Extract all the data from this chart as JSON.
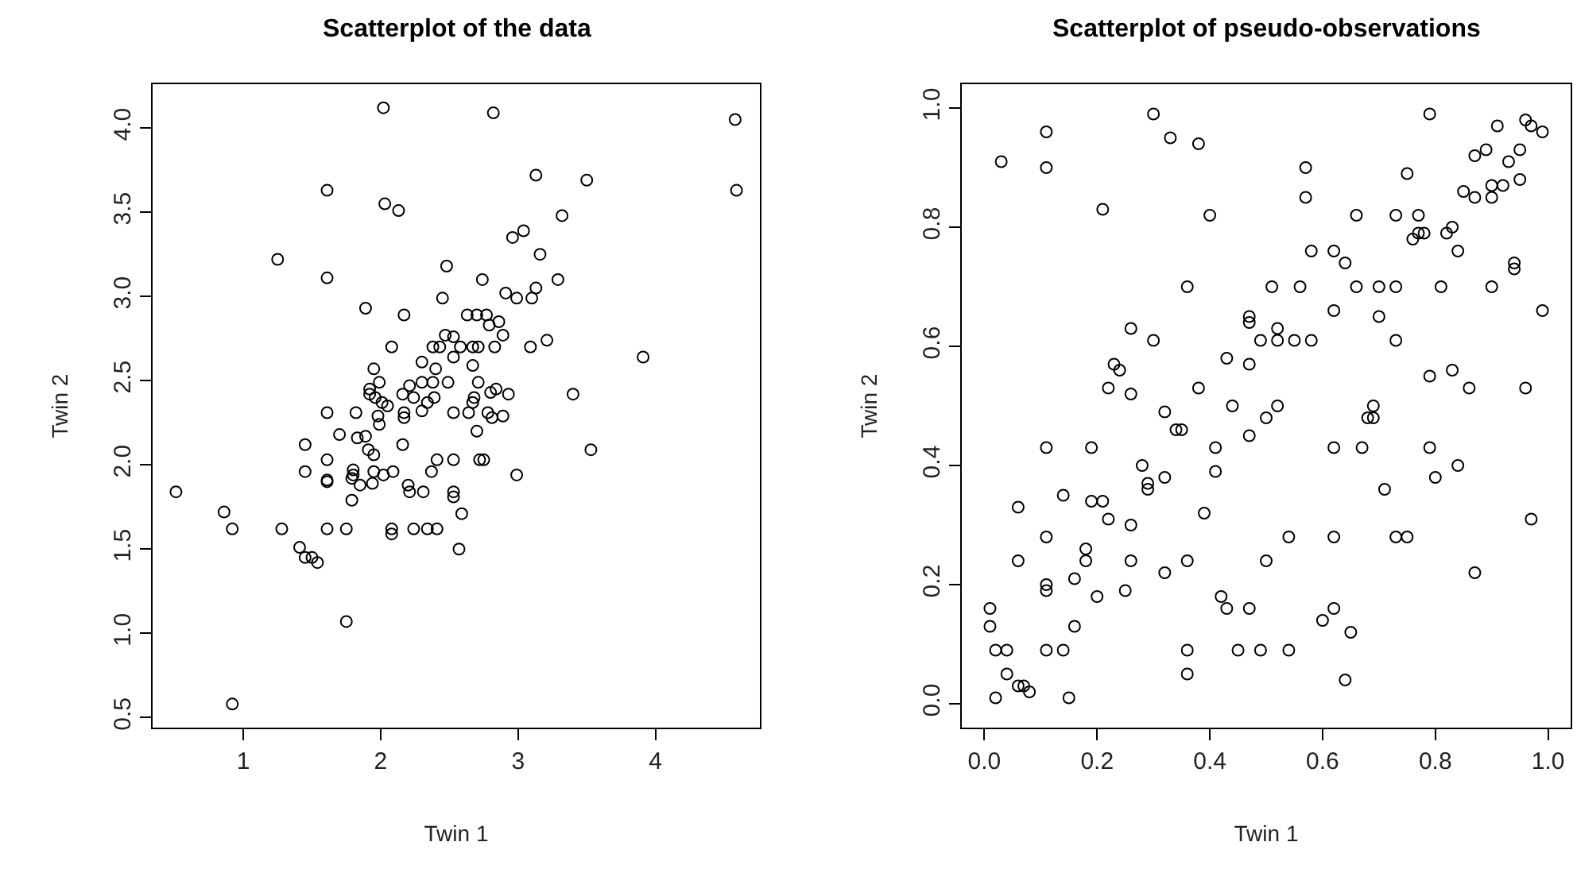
{
  "chart_data": [
    {
      "type": "scatter",
      "title": "Scatterplot of the data",
      "xlabel": "Twin 1",
      "ylabel": "Twin 2",
      "marker": "circle",
      "color": "#000000",
      "xlim": [
        0.34,
        4.76
      ],
      "ylim": [
        0.44,
        4.26
      ],
      "xticks": [
        1,
        2,
        3,
        4
      ],
      "yticks": [
        0.5,
        {
          "value": 1,
          "label": "1.0"
        },
        1.5,
        {
          "value": 2,
          "label": "2.0"
        },
        2.5,
        {
          "value": 3,
          "label": "3.0"
        },
        3.5,
        {
          "value": 4,
          "label": "4.0"
        }
      ],
      "x": [
        2.02,
        2.82,
        4.58,
        4.59,
        1.61,
        3.13,
        3.5,
        2.03,
        2.13,
        3.32,
        3.04,
        2.96,
        3.16,
        1.25,
        2.48,
        1.61,
        2.74,
        3.29,
        2.91,
        2.99,
        3.1,
        3.13,
        2.45,
        1.89,
        2.17,
        2.63,
        2.7,
        2.77,
        2.86,
        2.79,
        3.21,
        2.89,
        2.47,
        2.53,
        2.58,
        2.08,
        2.38,
        2.43,
        2.67,
        2.71,
        2.83,
        3.09,
        2.53,
        3.91,
        2.67,
        2.3,
        2.4,
        1.95,
        2.3,
        2.49,
        2.38,
        2.21,
        1.99,
        1.92,
        1.92,
        2.71,
        2.84,
        2.8,
        2.93,
        3.4,
        2.16,
        2.24,
        2.39,
        2.68,
        1.96,
        2.01,
        2.05,
        2.34,
        2.67,
        1.61,
        1.82,
        2.17,
        2.3,
        2.53,
        2.64,
        2.78,
        2.89,
        2.81,
        1.98,
        1.99,
        2.17,
        1.7,
        1.83,
        1.89,
        2.7,
        1.45,
        2.16,
        1.91,
        1.95,
        3.53,
        1.61,
        2.41,
        2.53,
        2.72,
        2.75,
        1.45,
        1.8,
        1.8,
        1.95,
        2.02,
        2.09,
        2.37,
        2.99,
        1.61,
        1.61,
        1.79,
        1.85,
        1.94,
        2.2,
        2.21,
        2.31,
        2.53,
        2.53,
        0.51,
        1.79,
        2.59,
        0.86,
        0.92,
        1.28,
        1.61,
        1.75,
        2.08,
        2.08,
        2.24,
        2.34,
        2.41,
        2.57,
        1.41,
        1.45,
        1.5,
        1.54,
        1.75,
        0.92
      ],
      "values": [
        4.12,
        4.09,
        4.05,
        3.63,
        3.63,
        3.72,
        3.69,
        3.55,
        3.51,
        3.48,
        3.39,
        3.35,
        3.25,
        3.22,
        3.18,
        3.11,
        3.1,
        3.1,
        3.02,
        2.99,
        2.99,
        3.05,
        2.99,
        2.93,
        2.89,
        2.89,
        2.89,
        2.89,
        2.85,
        2.83,
        2.74,
        2.77,
        2.77,
        2.76,
        2.7,
        2.7,
        2.7,
        2.7,
        2.7,
        2.7,
        2.7,
        2.7,
        2.64,
        2.64,
        2.59,
        2.61,
        2.57,
        2.57,
        2.49,
        2.49,
        2.49,
        2.47,
        2.49,
        2.45,
        2.42,
        2.49,
        2.45,
        2.43,
        2.42,
        2.42,
        2.42,
        2.4,
        2.4,
        2.4,
        2.4,
        2.37,
        2.35,
        2.37,
        2.37,
        2.31,
        2.31,
        2.31,
        2.32,
        2.31,
        2.31,
        2.31,
        2.29,
        2.28,
        2.29,
        2.24,
        2.28,
        2.18,
        2.16,
        2.17,
        2.2,
        2.12,
        2.12,
        2.09,
        2.06,
        2.09,
        2.03,
        2.03,
        2.03,
        2.03,
        2.03,
        1.96,
        1.97,
        1.94,
        1.96,
        1.94,
        1.96,
        1.96,
        1.94,
        1.91,
        1.9,
        1.92,
        1.88,
        1.89,
        1.88,
        1.84,
        1.84,
        1.84,
        1.81,
        1.84,
        1.79,
        1.71,
        1.72,
        1.62,
        1.62,
        1.62,
        1.62,
        1.62,
        1.59,
        1.62,
        1.62,
        1.62,
        1.5,
        1.51,
        1.45,
        1.45,
        1.42,
        1.07,
        0.58
      ]
    },
    {
      "type": "scatter",
      "title": "Scatterplot of pseudo-observations",
      "xlabel": "Twin 1",
      "ylabel": "Twin 2",
      "marker": "circle",
      "color": "#000000",
      "xlim": [
        -0.04,
        1.04
      ],
      "ylim": [
        -0.04,
        1.04
      ],
      "xticks": [
        {
          "value": 0,
          "label": "0.0"
        },
        0.2,
        0.4,
        0.6,
        0.8,
        {
          "value": 1,
          "label": "1.0"
        }
      ],
      "yticks": [
        {
          "value": 0,
          "label": "0.0"
        },
        0.2,
        0.4,
        0.6,
        0.8,
        {
          "value": 1,
          "label": "1.0"
        }
      ],
      "x": [
        0.03,
        0.11,
        0.11,
        0.21,
        0.3,
        0.33,
        0.38,
        0.4,
        0.57,
        0.57,
        0.79,
        0.91,
        0.96,
        0.97,
        0.99,
        0.95,
        0.93,
        0.87,
        0.89,
        0.92,
        0.95,
        0.9,
        0.87,
        0.9,
        0.85,
        0.75,
        0.66,
        0.73,
        0.77,
        0.76,
        0.77,
        0.78,
        0.82,
        0.83,
        0.84,
        0.94,
        0.94,
        0.58,
        0.62,
        0.64,
        0.36,
        0.51,
        0.56,
        0.66,
        0.7,
        0.73,
        0.81,
        0.9,
        0.99,
        0.62,
        0.7,
        0.47,
        0.47,
        0.26,
        0.52,
        0.3,
        0.49,
        0.52,
        0.55,
        0.58,
        0.73,
        0.43,
        0.47,
        0.23,
        0.24,
        0.83,
        0.79,
        0.22,
        0.38,
        0.86,
        0.96,
        0.26,
        0.52,
        0.69,
        0.32,
        0.44,
        0.68,
        0.69,
        0.5,
        0.35,
        0.34,
        0.47,
        0.11,
        0.19,
        0.41,
        0.62,
        0.67,
        0.79,
        0.28,
        0.84,
        0.41,
        0.32,
        0.8,
        0.29,
        0.29,
        0.71,
        0.14,
        0.21,
        0.19,
        0.06,
        0.39,
        0.22,
        0.97,
        0.26,
        0.11,
        0.54,
        0.62,
        0.73,
        0.75,
        0.18,
        0.06,
        0.18,
        0.26,
        0.36,
        0.5,
        0.32,
        0.87,
        0.16,
        0.11,
        0.11,
        0.25,
        0.2,
        0.42,
        0.01,
        0.43,
        0.47,
        0.62,
        0.6,
        0.01,
        0.16,
        0.65,
        0.02,
        0.04,
        0.11,
        0.14,
        0.36,
        0.45,
        0.49,
        0.54,
        0.36,
        0.04,
        0.06,
        0.07,
        0.08,
        0.02,
        0.15,
        0.64
      ],
      "values": [
        0.91,
        0.96,
        0.9,
        0.83,
        0.99,
        0.95,
        0.94,
        0.82,
        0.9,
        0.85,
        0.99,
        0.97,
        0.98,
        0.97,
        0.96,
        0.93,
        0.91,
        0.92,
        0.93,
        0.87,
        0.88,
        0.87,
        0.85,
        0.85,
        0.86,
        0.89,
        0.82,
        0.82,
        0.82,
        0.78,
        0.79,
        0.79,
        0.79,
        0.8,
        0.76,
        0.74,
        0.73,
        0.76,
        0.76,
        0.74,
        0.7,
        0.7,
        0.7,
        0.7,
        0.7,
        0.7,
        0.7,
        0.7,
        0.66,
        0.66,
        0.65,
        0.65,
        0.64,
        0.63,
        0.63,
        0.61,
        0.61,
        0.61,
        0.61,
        0.61,
        0.61,
        0.58,
        0.57,
        0.57,
        0.56,
        0.56,
        0.55,
        0.53,
        0.53,
        0.53,
        0.53,
        0.52,
        0.5,
        0.5,
        0.49,
        0.5,
        0.48,
        0.48,
        0.48,
        0.46,
        0.46,
        0.45,
        0.43,
        0.43,
        0.43,
        0.43,
        0.43,
        0.43,
        0.4,
        0.4,
        0.39,
        0.38,
        0.38,
        0.37,
        0.36,
        0.36,
        0.35,
        0.34,
        0.34,
        0.33,
        0.32,
        0.31,
        0.31,
        0.3,
        0.28,
        0.28,
        0.28,
        0.28,
        0.28,
        0.26,
        0.24,
        0.24,
        0.24,
        0.24,
        0.24,
        0.22,
        0.22,
        0.21,
        0.2,
        0.19,
        0.19,
        0.18,
        0.18,
        0.16,
        0.16,
        0.16,
        0.16,
        0.14,
        0.13,
        0.13,
        0.12,
        0.09,
        0.09,
        0.09,
        0.09,
        0.09,
        0.09,
        0.09,
        0.09,
        0.05,
        0.05,
        0.03,
        0.03,
        0.02,
        0.01,
        0.01,
        0.04
      ]
    }
  ]
}
